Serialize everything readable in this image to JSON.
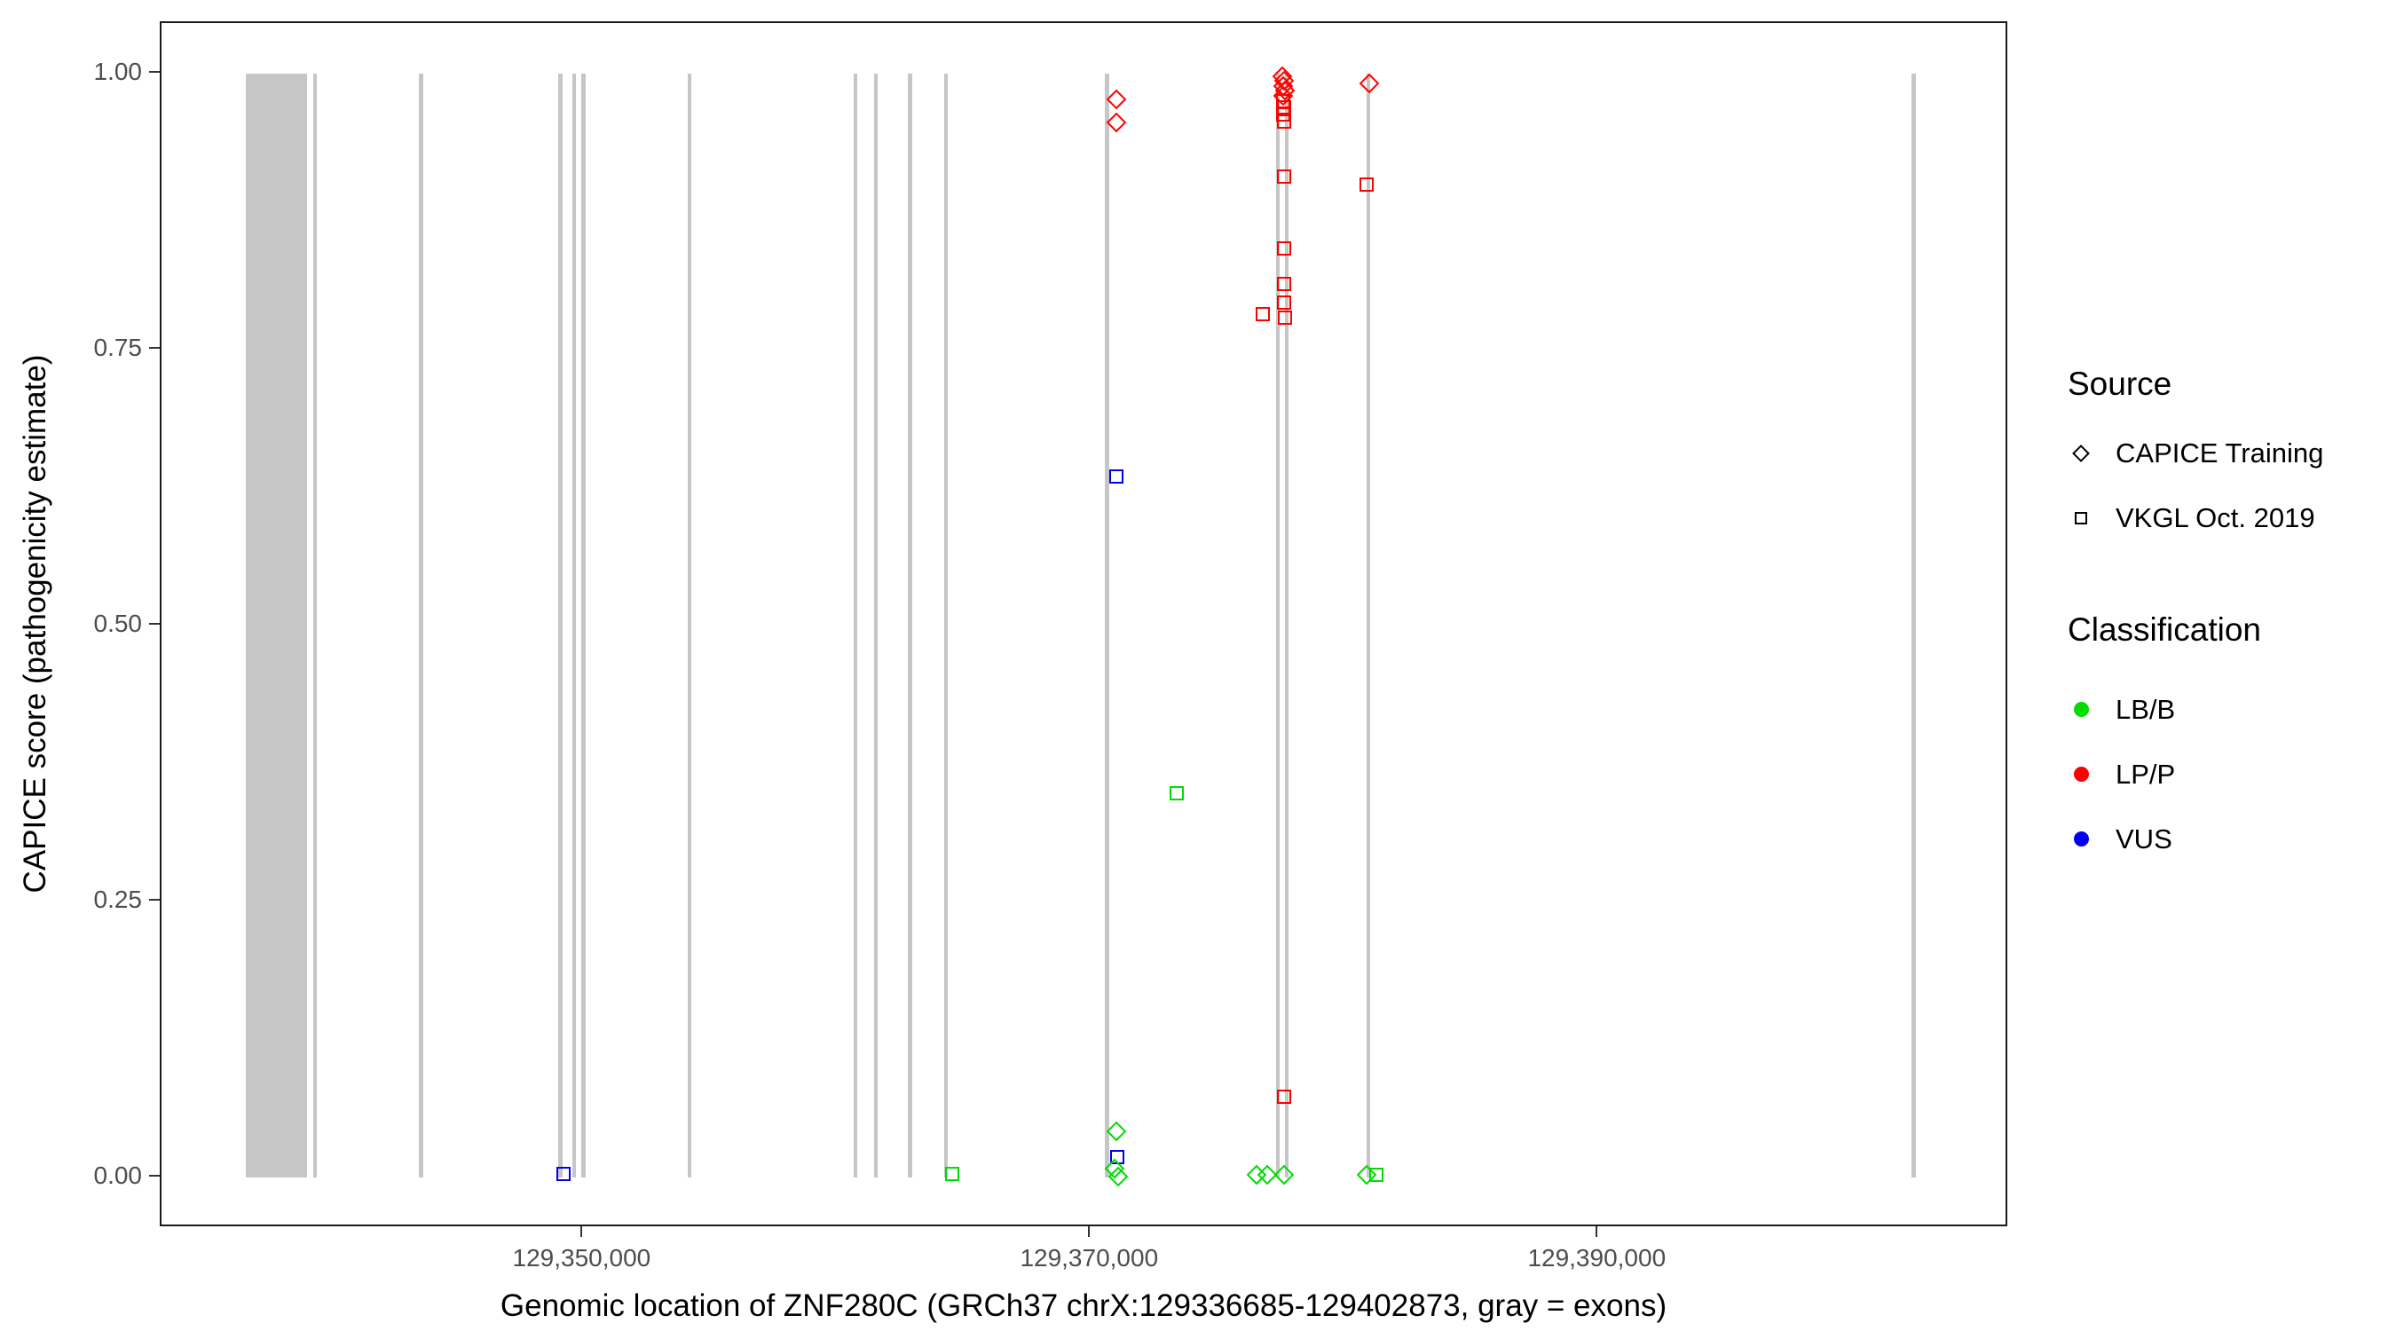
{
  "chart_data": {
    "type": "scatter",
    "title": "",
    "xlabel": "Genomic location of ZNF280C (GRCh37 chrX:129336685-129402873, gray = exons)",
    "ylabel": "CAPICE score (pathogenicity estimate)",
    "xlim": [
      129333376,
      129406182
    ],
    "ylim": [
      -0.046,
      1.046
    ],
    "grid": false,
    "legend_position": "right",
    "x_ticks": [
      {
        "value": 129350000,
        "label": "129,350,000"
      },
      {
        "value": 129370000,
        "label": "129,370,000"
      },
      {
        "value": 129390000,
        "label": "129,390,000"
      }
    ],
    "y_ticks": [
      {
        "value": 0.0,
        "label": "0.00"
      },
      {
        "value": 0.25,
        "label": "0.25"
      },
      {
        "value": 0.5,
        "label": "0.50"
      },
      {
        "value": 0.75,
        "label": "0.75"
      },
      {
        "value": 1.0,
        "label": "1.00"
      }
    ],
    "exon_color": "#c6c6c6",
    "exons": [
      [
        129336685,
        129339100
      ],
      [
        129339350,
        129339500
      ],
      [
        129343500,
        129343680
      ],
      [
        129349000,
        129349180
      ],
      [
        129349560,
        129349720
      ],
      [
        129349930,
        129350080
      ],
      [
        129354100,
        129354260
      ],
      [
        129360650,
        129360810
      ],
      [
        129361450,
        129361610
      ],
      [
        129362800,
        129362960
      ],
      [
        129364200,
        129364360
      ],
      [
        129370550,
        129370720
      ],
      [
        129377280,
        129377440
      ],
      [
        129377640,
        129377800
      ],
      [
        129380850,
        129381010
      ],
      [
        129402350,
        129402530
      ]
    ],
    "class_colors": {
      "LB/B": "#00dc00",
      "LP/P": "#ff0000",
      "VUS": "#0000ee"
    },
    "shape_by_source": {
      "CAPICE Training": "diamond",
      "VKGL Oct. 2019": "square"
    },
    "points": [
      {
        "x": 129371000,
        "y": 0.977,
        "source": "CAPICE Training",
        "cls": "LP/P"
      },
      {
        "x": 129371000,
        "y": 0.956,
        "source": "CAPICE Training",
        "cls": "LP/P"
      },
      {
        "x": 129377540,
        "y": 0.998,
        "source": "CAPICE Training",
        "cls": "LP/P"
      },
      {
        "x": 129377600,
        "y": 0.994,
        "source": "CAPICE Training",
        "cls": "LP/P"
      },
      {
        "x": 129377560,
        "y": 0.989,
        "source": "CAPICE Training",
        "cls": "LP/P"
      },
      {
        "x": 129377630,
        "y": 0.985,
        "source": "CAPICE Training",
        "cls": "LP/P"
      },
      {
        "x": 129377580,
        "y": 0.98,
        "source": "CAPICE Training",
        "cls": "LP/P"
      },
      {
        "x": 129380970,
        "y": 0.991,
        "source": "CAPICE Training",
        "cls": "LP/P"
      },
      {
        "x": 129377560,
        "y": 0.975,
        "source": "VKGL Oct. 2019",
        "cls": "LP/P"
      },
      {
        "x": 129377610,
        "y": 0.97,
        "source": "VKGL Oct. 2019",
        "cls": "LP/P"
      },
      {
        "x": 129377570,
        "y": 0.963,
        "source": "VKGL Oct. 2019",
        "cls": "LP/P"
      },
      {
        "x": 129377620,
        "y": 0.957,
        "source": "VKGL Oct. 2019",
        "cls": "LP/P"
      },
      {
        "x": 129377600,
        "y": 0.907,
        "source": "VKGL Oct. 2019",
        "cls": "LP/P"
      },
      {
        "x": 129380850,
        "y": 0.9,
        "source": "VKGL Oct. 2019",
        "cls": "LP/P"
      },
      {
        "x": 129377610,
        "y": 0.842,
        "source": "VKGL Oct. 2019",
        "cls": "LP/P"
      },
      {
        "x": 129377620,
        "y": 0.81,
        "source": "VKGL Oct. 2019",
        "cls": "LP/P"
      },
      {
        "x": 129377600,
        "y": 0.793,
        "source": "VKGL Oct. 2019",
        "cls": "LP/P"
      },
      {
        "x": 129377630,
        "y": 0.779,
        "source": "VKGL Oct. 2019",
        "cls": "LP/P"
      },
      {
        "x": 129376760,
        "y": 0.782,
        "source": "VKGL Oct. 2019",
        "cls": "LP/P"
      },
      {
        "x": 129377610,
        "y": 0.073,
        "source": "VKGL Oct. 2019",
        "cls": "LP/P"
      },
      {
        "x": 129371000,
        "y": 0.635,
        "source": "VKGL Oct. 2019",
        "cls": "VUS"
      },
      {
        "x": 129371050,
        "y": 0.018,
        "source": "VKGL Oct. 2019",
        "cls": "VUS"
      },
      {
        "x": 129349220,
        "y": 0.003,
        "source": "VKGL Oct. 2019",
        "cls": "VUS"
      },
      {
        "x": 129373390,
        "y": 0.348,
        "source": "VKGL Oct. 2019",
        "cls": "LB/B"
      },
      {
        "x": 129364520,
        "y": 0.003,
        "source": "VKGL Oct. 2019",
        "cls": "LB/B"
      },
      {
        "x": 129381230,
        "y": 0.002,
        "source": "VKGL Oct. 2019",
        "cls": "LB/B"
      },
      {
        "x": 129371000,
        "y": 0.042,
        "source": "CAPICE Training",
        "cls": "LB/B"
      },
      {
        "x": 129370920,
        "y": 0.008,
        "source": "CAPICE Training",
        "cls": "LB/B"
      },
      {
        "x": 129371060,
        "y": 0.001,
        "source": "CAPICE Training",
        "cls": "LB/B"
      },
      {
        "x": 129376520,
        "y": 0.002,
        "source": "CAPICE Training",
        "cls": "LB/B"
      },
      {
        "x": 129376940,
        "y": 0.002,
        "source": "CAPICE Training",
        "cls": "LB/B"
      },
      {
        "x": 129377610,
        "y": 0.002,
        "source": "CAPICE Training",
        "cls": "LB/B"
      },
      {
        "x": 129380860,
        "y": 0.002,
        "source": "CAPICE Training",
        "cls": "LB/B"
      }
    ]
  },
  "legend": {
    "source_title": "Source",
    "source_items": [
      {
        "label": "CAPICE Training",
        "shape": "diamond"
      },
      {
        "label": "VKGL Oct. 2019",
        "shape": "square"
      }
    ],
    "classification_title": "Classification",
    "classification_items": [
      {
        "label": "LB/B",
        "color": "#00dc00"
      },
      {
        "label": "LP/P",
        "color": "#ff0000"
      },
      {
        "label": "VUS",
        "color": "#0000ee"
      }
    ]
  }
}
